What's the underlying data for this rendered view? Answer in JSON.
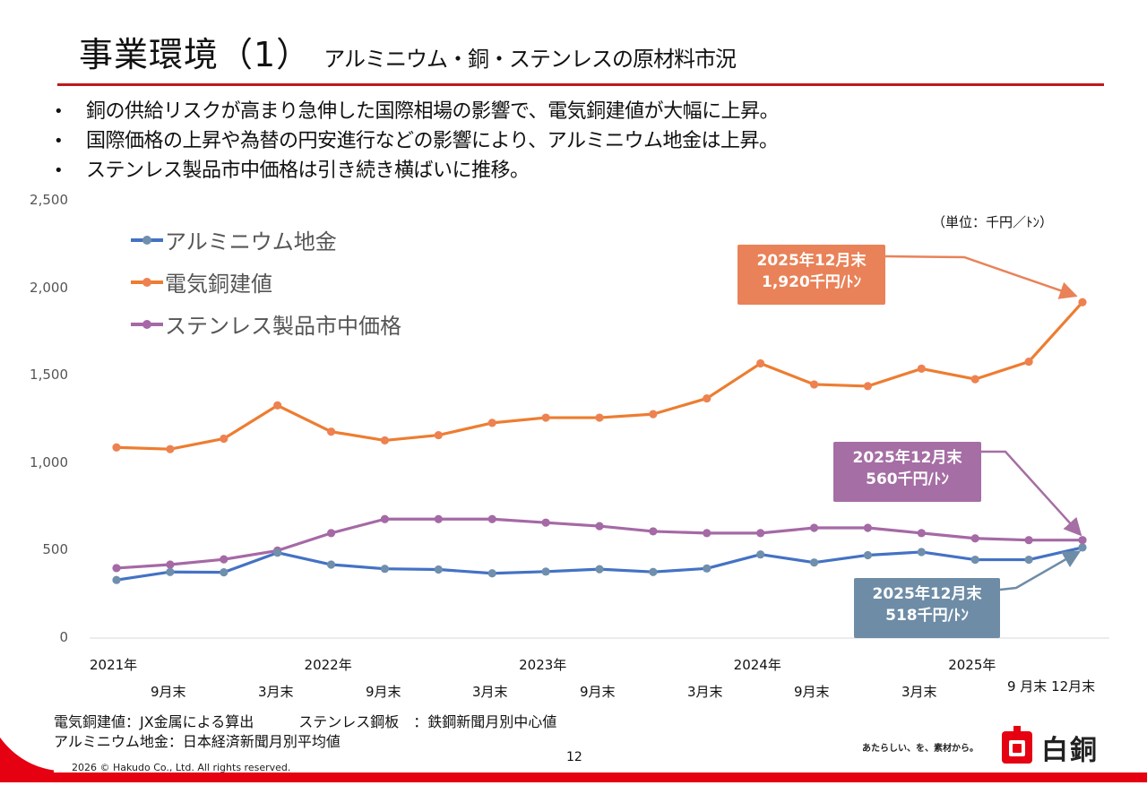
{
  "header": {
    "title": "事業環境（1）",
    "subtitle": "アルミニウム・銅・ステンレスの原材料市況"
  },
  "bullets": [
    "銅の供給リスクが高まり急伸した国際相場の影響で、電気銅建値が大幅に上昇。",
    "国際価格の上昇や為替の円安進行などの影響により、アルミニウム地金は上昇。",
    "ステンレス製品市中価格は引き続き横ばいに推移。"
  ],
  "bullet_symbol": "•",
  "chart_data": {
    "type": "line",
    "title": "",
    "unit_label": "（単位：千円／ﾄﾝ）",
    "xlabel": "",
    "ylabel": "",
    "ylim": [
      0,
      2500
    ],
    "yticks": [
      0,
      500,
      1000,
      1500,
      2000,
      2500
    ],
    "ytick_labels": [
      "0",
      "500",
      "1,000",
      "1,500",
      "2,000",
      "2,500"
    ],
    "grid": false,
    "legend_position": "top-left",
    "x_count": 19,
    "x_labels_row1": [
      {
        "index": 0,
        "label": "2021年"
      },
      {
        "index": 4,
        "label": "2022年"
      },
      {
        "index": 8,
        "label": "2023年"
      },
      {
        "index": 12,
        "label": "2024年"
      },
      {
        "index": 16,
        "label": "2025年"
      }
    ],
    "x_labels_row2": [
      {
        "index": 2,
        "label": "9月末"
      },
      {
        "index": 4,
        "label": "3月末"
      },
      {
        "index": 6,
        "label": "9月末"
      },
      {
        "index": 8,
        "label": "3月末"
      },
      {
        "index": 10,
        "label": "9月末"
      },
      {
        "index": 12,
        "label": "3月末"
      },
      {
        "index": 14,
        "label": "9月末"
      },
      {
        "index": 16,
        "label": "3月末"
      }
    ],
    "x_label_end": "9 月末 12月末",
    "series": [
      {
        "name": "アルミニウム地金",
        "color": "#4472c4",
        "marker_color": "#6f8fad",
        "values": [
          332,
          378,
          376,
          488,
          420,
          396,
          392,
          370,
          380,
          394,
          378,
          398,
          478,
          432,
          474,
          492,
          448,
          448,
          518
        ]
      },
      {
        "name": "電気銅建値",
        "color": "#ed7d31",
        "marker_color": "#ed8250",
        "values": [
          1090,
          1080,
          1140,
          1330,
          1180,
          1130,
          1160,
          1230,
          1260,
          1260,
          1280,
          1370,
          1570,
          1450,
          1440,
          1540,
          1480,
          1580,
          1920
        ]
      },
      {
        "name": "ステンレス製品市中価格",
        "color": "#a569a5",
        "marker_color": "#a569a5",
        "values": [
          400,
          420,
          450,
          500,
          600,
          680,
          680,
          680,
          660,
          640,
          610,
          600,
          600,
          630,
          630,
          600,
          570,
          560,
          560
        ]
      }
    ],
    "annotations": [
      {
        "series": "電気銅建値",
        "line1": "2025年12月末",
        "line2": "1,920千円/ﾄﾝ",
        "color": "#e98258"
      },
      {
        "series": "ステンレス製品市中価格",
        "line1": "2025年12月末",
        "line2": "560千円/ﾄﾝ",
        "color": "#a56ea4"
      },
      {
        "series": "アルミニウム地金",
        "line1": "2025年12月末",
        "line2": "518千円/ﾄﾝ",
        "color": "#6e8ca6"
      }
    ]
  },
  "notes": {
    "copper": "電気銅建値：JX金属による算出",
    "stainless": "ステンレス鋼板　：鉄鋼新聞月別中心値",
    "aluminum": "アルミニウム地金：日本経済新聞月別平均値"
  },
  "footer": {
    "copyright": "2026 © Hakudo Co., Ltd. All rights reserved.",
    "page_number": "12",
    "tagline": "あたらしい、を、素材から。",
    "logo_text": "白銅"
  },
  "colors": {
    "accent_red": "#e50012",
    "title_rule": "#c0181f"
  }
}
